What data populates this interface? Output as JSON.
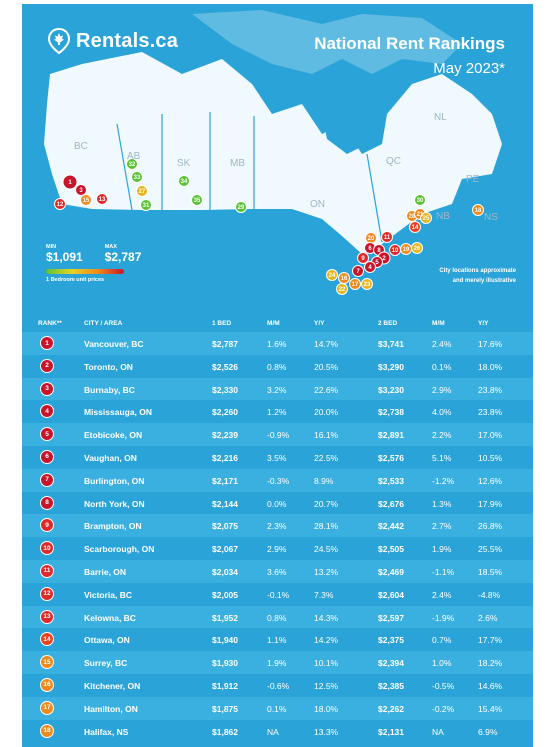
{
  "header": {
    "logo_text": "Rentals.ca",
    "title": "National Rent Rankings",
    "subtitle": "May 2023*"
  },
  "map": {
    "provinces": [
      "BC",
      "AB",
      "SK",
      "MB",
      "ON",
      "QC",
      "NB",
      "NS",
      "PE",
      "NL"
    ],
    "note_line1": "City locations approximate",
    "note_line2": "and merely illustrative",
    "markers": [
      "1",
      "2",
      "3",
      "4",
      "5",
      "6",
      "7",
      "8",
      "9",
      "10",
      "11",
      "12",
      "13",
      "14",
      "15",
      "16",
      "17",
      "18",
      "19",
      "20",
      "21",
      "22",
      "23",
      "24",
      "25",
      "26",
      "27",
      "28",
      "29",
      "30",
      "31",
      "32",
      "33",
      "34",
      "35"
    ]
  },
  "legend": {
    "min_label": "MIN",
    "min_value": "$1,091",
    "max_label": "MAX",
    "max_value": "$2,787",
    "caption": "1 Bedroom unit prices"
  },
  "table": {
    "headers": [
      "RANK**",
      "CITY / AREA",
      "1 BED",
      "M/M",
      "Y/Y",
      "2 BED",
      "M/M",
      "Y/Y"
    ],
    "rows": [
      {
        "rank": "1",
        "city": "Vancouver, BC",
        "b1": "$2,787",
        "b1mm": "1.6%",
        "b1yy": "14.7%",
        "b2": "$3,741",
        "b2mm": "2.4%",
        "b2yy": "17.6%",
        "color": "#c8152b"
      },
      {
        "rank": "2",
        "city": "Toronto, ON",
        "b1": "$2,526",
        "b1mm": "0.8%",
        "b1yy": "20.5%",
        "b2": "$3,290",
        "b2mm": "0.1%",
        "b2yy": "18.0%",
        "color": "#c8152b"
      },
      {
        "rank": "3",
        "city": "Burnaby, BC",
        "b1": "$2,330",
        "b1mm": "3.2%",
        "b1yy": "22.6%",
        "b2": "$3,230",
        "b2mm": "2.9%",
        "b2yy": "23.8%",
        "color": "#c8152b"
      },
      {
        "rank": "4",
        "city": "Mississauga, ON",
        "b1": "$2,260",
        "b1mm": "1.2%",
        "b1yy": "20.0%",
        "b2": "$2,738",
        "b2mm": "4.0%",
        "b2yy": "23.8%",
        "color": "#c8152b"
      },
      {
        "rank": "5",
        "city": "Etobicoke, ON",
        "b1": "$2,239",
        "b1mm": "-0.9%",
        "b1yy": "16.1%",
        "b2": "$2,891",
        "b2mm": "2.2%",
        "b2yy": "17.0%",
        "color": "#c8152b"
      },
      {
        "rank": "6",
        "city": "Vaughan, ON",
        "b1": "$2,216",
        "b1mm": "3.5%",
        "b1yy": "22.5%",
        "b2": "$2,576",
        "b2mm": "5.1%",
        "b2yy": "10.5%",
        "color": "#c8152b"
      },
      {
        "rank": "7",
        "city": "Burlington, ON",
        "b1": "$2,171",
        "b1mm": "-0.3%",
        "b1yy": "8.9%",
        "b2": "$2,533",
        "b2mm": "-1.2%",
        "b2yy": "12.6%",
        "color": "#c8152b"
      },
      {
        "rank": "8",
        "city": "North York, ON",
        "b1": "$2,144",
        "b1mm": "0.0%",
        "b1yy": "20.7%",
        "b2": "$2,676",
        "b2mm": "1.3%",
        "b2yy": "17.9%",
        "color": "#c8152b"
      },
      {
        "rank": "9",
        "city": "Brampton, ON",
        "b1": "$2,075",
        "b1mm": "2.3%",
        "b1yy": "28.1%",
        "b2": "$2,442",
        "b2mm": "2.7%",
        "b2yy": "26.8%",
        "color": "#e02a2a"
      },
      {
        "rank": "10",
        "city": "Scarborough, ON",
        "b1": "$2,067",
        "b1mm": "2.9%",
        "b1yy": "24.5%",
        "b2": "$2,505",
        "b2mm": "1.9%",
        "b2yy": "25.5%",
        "color": "#e02a2a"
      },
      {
        "rank": "11",
        "city": "Barrie, ON",
        "b1": "$2,034",
        "b1mm": "3.6%",
        "b1yy": "13.2%",
        "b2": "$2,469",
        "b2mm": "-1.1%",
        "b2yy": "18.5%",
        "color": "#e02a2a"
      },
      {
        "rank": "12",
        "city": "Victoria, BC",
        "b1": "$2,005",
        "b1mm": "-0.1%",
        "b1yy": "7.3%",
        "b2": "$2,604",
        "b2mm": "2.4%",
        "b2yy": "-4.8%",
        "color": "#e02a2a"
      },
      {
        "rank": "13",
        "city": "Kelowna, BC",
        "b1": "$1,952",
        "b1mm": "0.8%",
        "b1yy": "14.3%",
        "b2": "$2,597",
        "b2mm": "-1.9%",
        "b2yy": "2.6%",
        "color": "#e02a2a"
      },
      {
        "rank": "14",
        "city": "Ottawa, ON",
        "b1": "$1,940",
        "b1mm": "1.1%",
        "b1yy": "14.2%",
        "b2": "$2,375",
        "b2mm": "0.7%",
        "b2yy": "17.7%",
        "color": "#e8421f"
      },
      {
        "rank": "15",
        "city": "Surrey, BC",
        "b1": "$1,930",
        "b1mm": "1.9%",
        "b1yy": "10.1%",
        "b2": "$2,394",
        "b2mm": "1.0%",
        "b2yy": "18.2%",
        "color": "#f08a1d"
      },
      {
        "rank": "16",
        "city": "Kitchener, ON",
        "b1": "$1,912",
        "b1mm": "-0.6%",
        "b1yy": "12.5%",
        "b2": "$2,385",
        "b2mm": "-0.5%",
        "b2yy": "14.6%",
        "color": "#f08a1d"
      },
      {
        "rank": "17",
        "city": "Hamilton, ON",
        "b1": "$1,875",
        "b1mm": "0.1%",
        "b1yy": "18.0%",
        "b2": "$2,262",
        "b2mm": "-0.2%",
        "b2yy": "15.4%",
        "color": "#f08a1d"
      },
      {
        "rank": "18",
        "city": "Halifax, NS",
        "b1": "$1,862",
        "b1mm": "NA",
        "b1yy": "13.3%",
        "b2": "$2,131",
        "b2mm": "NA",
        "b2yy": "6.9%",
        "color": "#f08a1d"
      }
    ]
  },
  "colors": {
    "background": "#2aa4d8",
    "land": "#ffffff",
    "water": "#2aa4d8",
    "red": "#c8152b",
    "orange": "#f08a1d",
    "yellow": "#e6b51d",
    "green": "#5bc236"
  }
}
